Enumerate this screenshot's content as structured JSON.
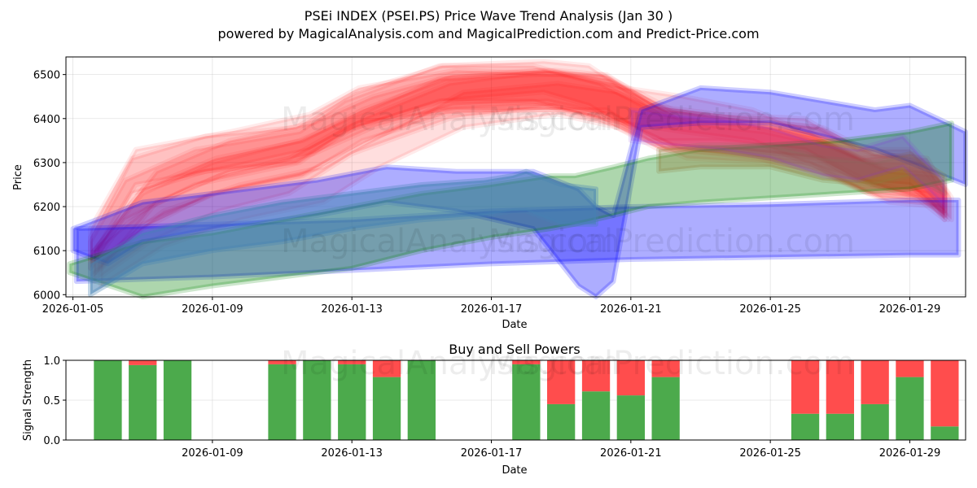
{
  "title_line1": "PSEi INDEX (PSEI.PS) Price Wave Trend Analysis (Jan 30 )",
  "title_line2": "powered by MagicalAnalysis.com and MagicalPrediction.com and Predict-Price.com",
  "watermarks": [
    "MagicalAnalysis.com",
    "MagicalPrediction.com"
  ],
  "chart_data": [
    {
      "type": "area",
      "title": "",
      "xlabel": "Date",
      "ylabel": "Price",
      "xlim": [
        -0.2,
        25.6
      ],
      "ylim": [
        5995,
        6540
      ],
      "x_origin_date": "2026-01-05",
      "x_ticks": [
        {
          "day": 0,
          "label": "2026-01-05"
        },
        {
          "day": 4,
          "label": "2026-01-09"
        },
        {
          "day": 8,
          "label": "2026-01-13"
        },
        {
          "day": 12,
          "label": "2026-01-17"
        },
        {
          "day": 16,
          "label": "2026-01-21"
        },
        {
          "day": 20,
          "label": "2026-01-25"
        },
        {
          "day": 24,
          "label": "2026-01-29"
        }
      ],
      "y_ticks": [
        6000,
        6100,
        6200,
        6300,
        6400,
        6500
      ],
      "grid": true,
      "series": [
        {
          "name": "red-wave-1",
          "color": "#ff0000",
          "opacity": 0.13,
          "x": [
            0.5,
            1.5,
            3.5,
            6.5,
            7.8,
            10.5,
            13.5,
            14.8,
            16.5,
            18.5,
            21,
            22.5,
            24,
            25
          ],
          "upper": [
            6120,
            6260,
            6330,
            6370,
            6440,
            6520,
            6530,
            6520,
            6430,
            6410,
            6400,
            6330,
            6330,
            6250
          ],
          "lower": [
            6060,
            6170,
            6250,
            6300,
            6370,
            6440,
            6460,
            6430,
            6350,
            6350,
            6330,
            6260,
            6250,
            6180
          ]
        },
        {
          "name": "red-wave-2",
          "color": "#ff0000",
          "opacity": 0.13,
          "x": [
            0.5,
            2,
            4,
            6.5,
            8.5,
            10.5,
            13.5,
            15.5,
            17,
            19,
            21.5,
            23,
            24.5,
            25
          ],
          "upper": [
            6090,
            6230,
            6300,
            6350,
            6420,
            6490,
            6510,
            6480,
            6420,
            6400,
            6380,
            6320,
            6310,
            6240
          ],
          "lower": [
            6040,
            6150,
            6230,
            6270,
            6350,
            6420,
            6430,
            6390,
            6330,
            6330,
            6310,
            6250,
            6230,
            6190
          ]
        },
        {
          "name": "red-wave-3",
          "color": "#ff0000",
          "opacity": 0.13,
          "x": [
            0.5,
            1.8,
            4.5,
            6.8,
            8.2,
            11,
            14,
            15.8,
            17.5,
            19.5,
            21,
            23,
            24.2,
            25
          ],
          "upper": [
            6150,
            6330,
            6370,
            6410,
            6470,
            6510,
            6500,
            6470,
            6450,
            6420,
            6370,
            6330,
            6300,
            6230
          ],
          "lower": [
            6080,
            6250,
            6290,
            6330,
            6390,
            6420,
            6420,
            6390,
            6370,
            6350,
            6300,
            6250,
            6220,
            6170
          ]
        },
        {
          "name": "red-wave-4",
          "color": "#ff0000",
          "opacity": 0.13,
          "x": [
            0.6,
            2.2,
            4.2,
            6.2,
            8,
            10.8,
            13.8,
            15.2,
            17.2,
            19.2,
            21.2,
            22.8,
            24.3,
            25
          ],
          "upper": [
            6100,
            6200,
            6270,
            6310,
            6390,
            6480,
            6510,
            6500,
            6420,
            6390,
            6360,
            6300,
            6300,
            6240
          ],
          "lower": [
            6030,
            6120,
            6190,
            6230,
            6320,
            6400,
            6430,
            6410,
            6340,
            6320,
            6290,
            6230,
            6220,
            6180
          ]
        },
        {
          "name": "red-wave-5",
          "color": "#ff0000",
          "opacity": 0.13,
          "x": [
            0.7,
            2.4,
            4.5,
            6.9,
            8.6,
            10.9,
            13.6,
            15.4,
            17.4,
            19.6,
            21.4,
            23.2,
            24.6,
            25
          ],
          "upper": [
            6110,
            6280,
            6350,
            6390,
            6450,
            6500,
            6510,
            6490,
            6400,
            6380,
            6350,
            6290,
            6280,
            6220
          ],
          "lower": [
            6050,
            6210,
            6280,
            6320,
            6380,
            6430,
            6440,
            6410,
            6330,
            6310,
            6280,
            6220,
            6210,
            6170
          ]
        },
        {
          "name": "red-wave-6",
          "color": "#ff0000",
          "opacity": 0.13,
          "x": [
            0.5,
            1.7,
            3.8,
            6.4,
            8.1,
            10.6,
            13.2,
            15.1,
            16.8,
            18.8,
            21.1,
            22.6,
            24.1,
            25
          ],
          "upper": [
            6130,
            6310,
            6360,
            6380,
            6460,
            6520,
            6520,
            6480,
            6410,
            6390,
            6370,
            6310,
            6320,
            6250
          ],
          "lower": [
            6060,
            6230,
            6280,
            6300,
            6380,
            6440,
            6440,
            6400,
            6330,
            6320,
            6300,
            6240,
            6240,
            6190
          ]
        },
        {
          "name": "red-wave-7",
          "color": "#ff0000",
          "opacity": 0.13,
          "x": [
            0.8,
            2.6,
            4.8,
            7.2,
            8.8,
            11.2,
            13.9,
            15.6,
            17.6,
            19.8,
            21.6,
            23.4,
            24.8,
            25.2
          ],
          "upper": [
            6080,
            6190,
            6250,
            6290,
            6360,
            6460,
            6480,
            6460,
            6390,
            6370,
            6340,
            6280,
            6270,
            6220
          ],
          "lower": [
            6020,
            6110,
            6170,
            6210,
            6290,
            6380,
            6410,
            6380,
            6310,
            6300,
            6270,
            6210,
            6200,
            6170
          ]
        },
        {
          "name": "red-wave-8",
          "color": "#ff0000",
          "opacity": 0.13,
          "x": [
            0.6,
            2,
            4.1,
            6.6,
            8.3,
            10.7,
            13.3,
            15.3,
            16.9,
            19.1,
            21.3,
            22.9,
            24.4,
            25.1
          ],
          "upper": [
            6100,
            6240,
            6310,
            6350,
            6420,
            6490,
            6500,
            6500,
            6420,
            6400,
            6380,
            6320,
            6300,
            6230
          ],
          "lower": [
            6040,
            6160,
            6230,
            6270,
            6350,
            6410,
            6420,
            6420,
            6340,
            6330,
            6310,
            6250,
            6220,
            6170
          ]
        },
        {
          "name": "blue-upper-band",
          "color": "#0000ff",
          "opacity": 0.32,
          "x": [
            0,
            1,
            2,
            4,
            7,
            9,
            11,
            13.2,
            14.5,
            15,
            15.5,
            16.3,
            18,
            20,
            21.5,
            23,
            24,
            25.6
          ],
          "upper": [
            6150,
            6180,
            6210,
            6230,
            6260,
            6290,
            6280,
            6280,
            6240,
            6200,
            6180,
            6420,
            6470,
            6460,
            6440,
            6420,
            6430,
            6370
          ],
          "lower": [
            6100,
            6070,
            6120,
            6150,
            6180,
            6210,
            6190,
            6150,
            6020,
            5995,
            6030,
            6380,
            6390,
            6390,
            6360,
            6330,
            6300,
            6250
          ]
        },
        {
          "name": "blue-lower-band",
          "color": "#0000ff",
          "opacity": 0.32,
          "x": [
            0.1,
            4,
            8,
            12,
            16,
            20,
            24,
            25.4
          ],
          "upper": [
            6150,
            6160,
            6170,
            6190,
            6200,
            6205,
            6215,
            6215
          ],
          "lower": [
            6030,
            6040,
            6055,
            6070,
            6080,
            6085,
            6090,
            6090
          ]
        },
        {
          "name": "green-band",
          "color": "#008000",
          "opacity": 0.32,
          "x": [
            -0.1,
            2,
            4,
            6,
            8,
            10,
            12,
            13.7,
            14.4,
            15.5,
            16.5,
            18,
            20,
            22,
            24,
            25.2
          ],
          "upper": [
            6070,
            6120,
            6140,
            6170,
            6200,
            6230,
            6250,
            6270,
            6270,
            6290,
            6310,
            6330,
            6340,
            6350,
            6370,
            6390
          ],
          "lower": [
            6050,
            5995,
            6020,
            6040,
            6060,
            6100,
            6130,
            6150,
            6160,
            6180,
            6200,
            6210,
            6220,
            6230,
            6240,
            6260
          ]
        },
        {
          "name": "steel-wave",
          "color": "#4682b4",
          "opacity": 0.55,
          "x": [
            0.5,
            2,
            4,
            6,
            8,
            10,
            11.8,
            12.6,
            13,
            14,
            15
          ],
          "upper": [
            6070,
            6140,
            6180,
            6210,
            6230,
            6250,
            6260,
            6270,
            6280,
            6250,
            6240
          ],
          "lower": [
            6000,
            6070,
            6100,
            6120,
            6150,
            6170,
            6180,
            6190,
            6190,
            6160,
            6160
          ]
        },
        {
          "name": "olive-wave",
          "color": "#8b7d3a",
          "opacity": 0.35,
          "x": [
            16.8,
            18,
            20,
            21.5,
            23,
            24,
            25
          ],
          "upper": [
            6330,
            6340,
            6340,
            6310,
            6300,
            6320,
            6270
          ],
          "lower": [
            6280,
            6290,
            6290,
            6260,
            6250,
            6270,
            6230
          ]
        },
        {
          "name": "violet-wave",
          "color": "#8a2be2",
          "opacity": 0.22,
          "x": [
            16,
            17,
            18.5,
            20,
            21.5,
            22.5,
            23.8,
            24.5,
            25
          ],
          "upper": [
            6420,
            6410,
            6400,
            6380,
            6340,
            6330,
            6360,
            6300,
            6260
          ],
          "lower": [
            6350,
            6340,
            6330,
            6310,
            6270,
            6260,
            6290,
            6240,
            6200
          ]
        }
      ]
    },
    {
      "type": "bar",
      "title": "Buy and Sell Powers",
      "xlabel": "Date",
      "ylabel": "Signal Strength",
      "ylim": [
        0,
        1.0
      ],
      "y_ticks": [
        "0.0",
        "0.5",
        "1.0"
      ],
      "x_origin_date": "2026-01-05",
      "x_ticks": [
        {
          "day": 4,
          "label": "2026-01-09"
        },
        {
          "day": 8,
          "label": "2026-01-13"
        },
        {
          "day": 12,
          "label": "2026-01-17"
        },
        {
          "day": 16,
          "label": "2026-01-21"
        },
        {
          "day": 20,
          "label": "2026-01-25"
        },
        {
          "day": 24,
          "label": "2026-01-29"
        }
      ],
      "categories": [
        "2026-01-06",
        "2026-01-07",
        "2026-01-08",
        "2026-01-11",
        "2026-01-12",
        "2026-01-13",
        "2026-01-14",
        "2026-01-15",
        "2026-01-18",
        "2026-01-19",
        "2026-01-20",
        "2026-01-21",
        "2026-01-22",
        "2026-01-26",
        "2026-01-27",
        "2026-01-28",
        "2026-01-29",
        "2026-01-30"
      ],
      "day_index": [
        1,
        2,
        3,
        6,
        7,
        8,
        9,
        10,
        13,
        14,
        15,
        16,
        17,
        21,
        22,
        23,
        24,
        25
      ],
      "series": [
        {
          "name": "Buy",
          "color": "#4caa4c",
          "values": [
            1.0,
            0.94,
            1.0,
            0.95,
            1.0,
            0.95,
            0.79,
            1.0,
            0.95,
            0.45,
            0.61,
            0.56,
            0.79,
            0.33,
            0.33,
            0.45,
            0.79,
            0.17
          ]
        },
        {
          "name": "Sell",
          "color": "#ff4d4d",
          "values": [
            0.0,
            0.06,
            0.0,
            0.05,
            0.0,
            0.05,
            0.21,
            0.0,
            0.05,
            0.55,
            0.39,
            0.44,
            0.21,
            0.67,
            0.67,
            0.55,
            0.21,
            0.83
          ]
        }
      ]
    }
  ]
}
